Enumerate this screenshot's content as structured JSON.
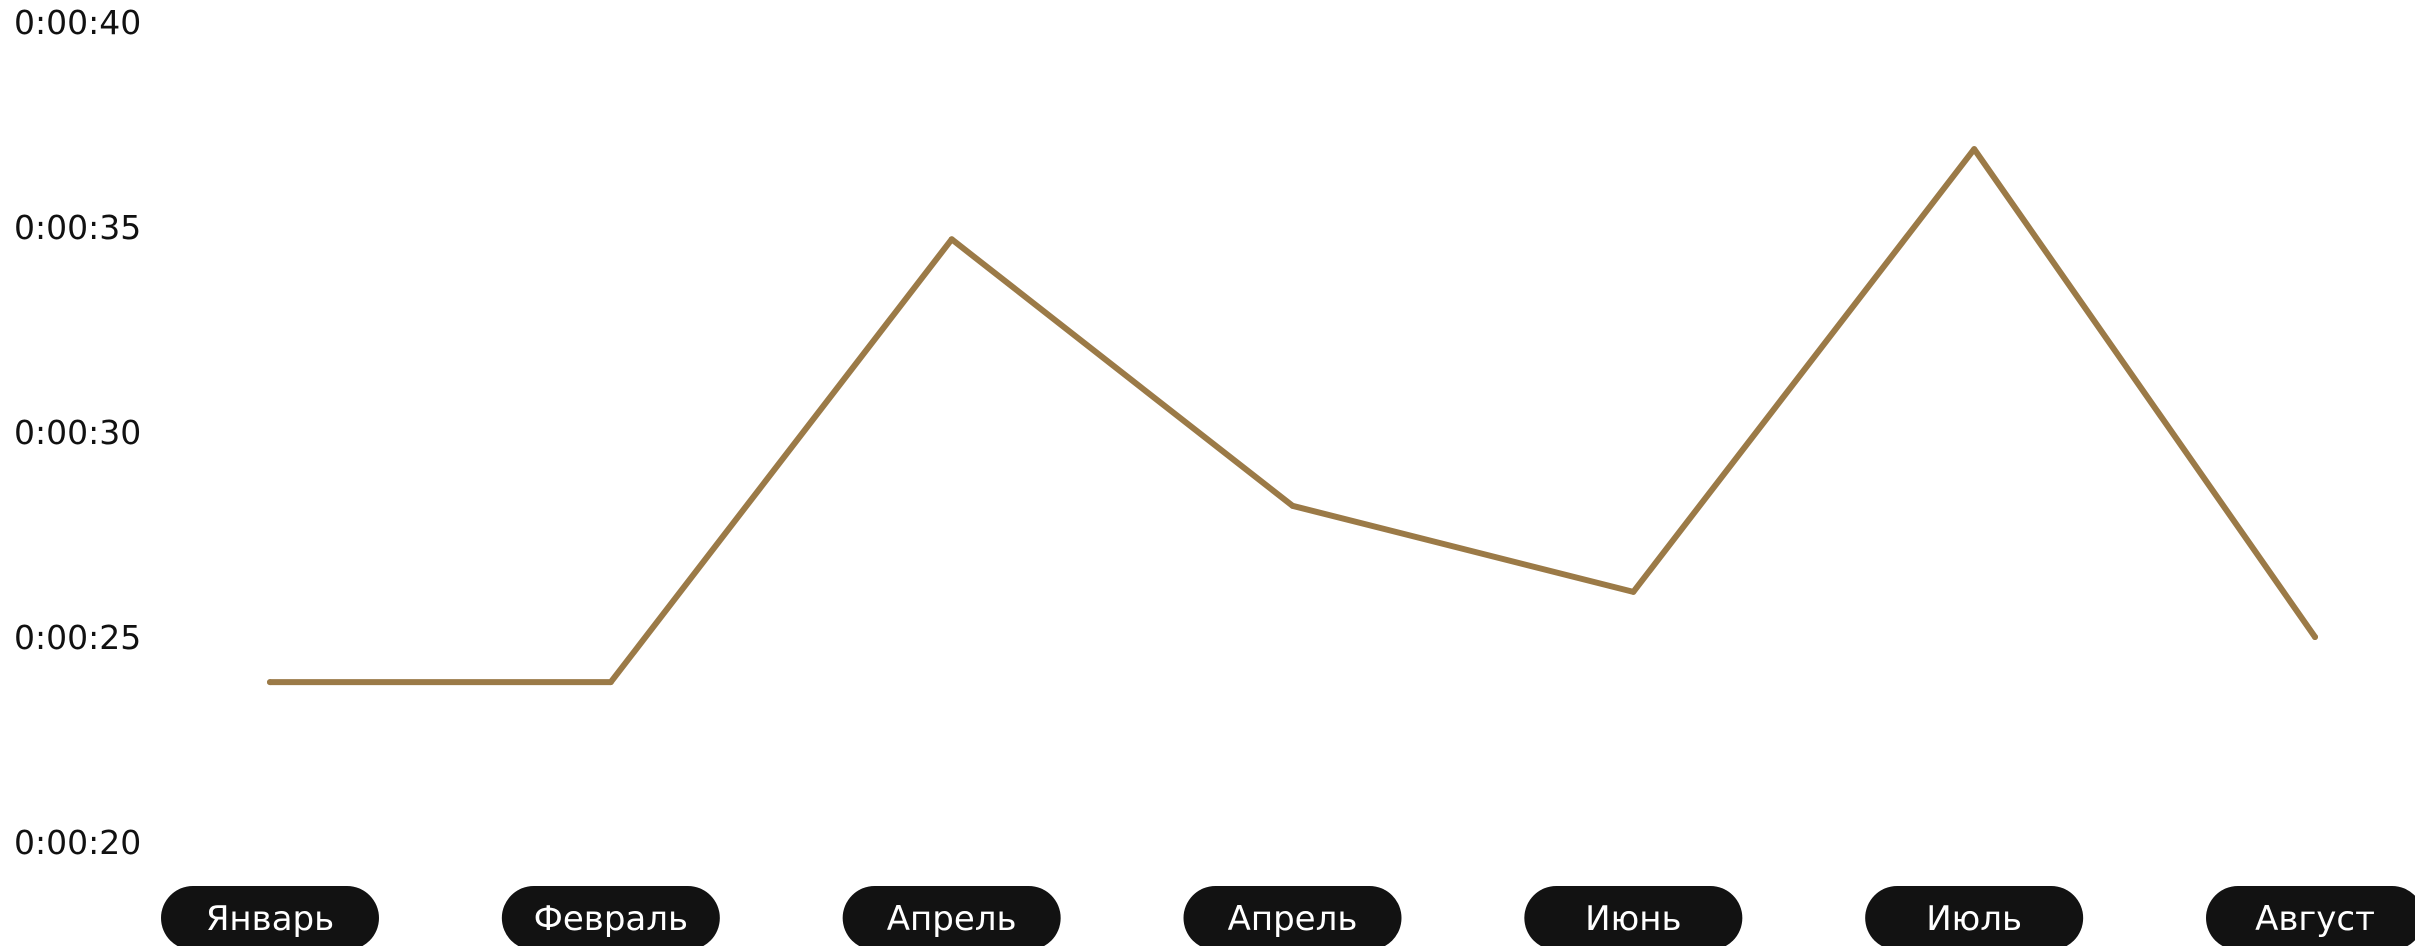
{
  "chart_data": {
    "type": "line",
    "categories": [
      "Январь",
      "Февраль",
      "Апрель",
      "Апрель",
      "Июнь",
      "Июль",
      "Август"
    ],
    "series": [
      {
        "values": [
          23.9,
          23.9,
          34.7,
          28.2,
          26.1,
          36.9,
          25.0
        ]
      }
    ],
    "y_unit": "seconds",
    "ylim": [
      20,
      40
    ],
    "y_ticks": [
      40,
      35,
      30,
      25,
      20
    ],
    "y_tick_labels": [
      "0:00:40",
      "0:00:35",
      "0:00:30",
      "0:00:25",
      "0:00:20"
    ],
    "grid": false,
    "legend": "none",
    "colors": {
      "line": "#9B7A47",
      "label_pill": "#121212",
      "label_text": "#FFFFFF",
      "tick_text": "#111111"
    }
  }
}
